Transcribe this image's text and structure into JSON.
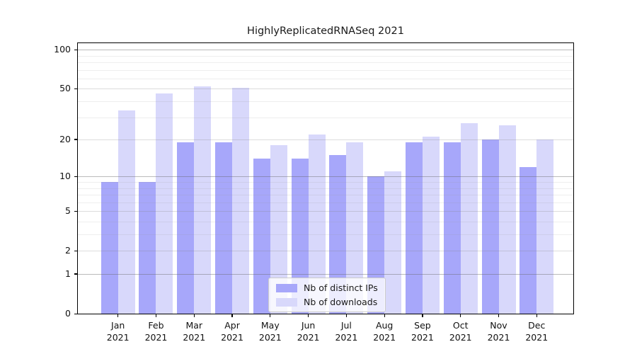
{
  "title": "HighlyReplicatedRNASeq 2021",
  "chart_data": {
    "type": "bar",
    "title": "HighlyReplicatedRNASeq 2021",
    "categories": [
      "Jan",
      "Feb",
      "Mar",
      "Apr",
      "May",
      "Jun",
      "Jul",
      "Aug",
      "Sep",
      "Oct",
      "Nov",
      "Dec"
    ],
    "category_year": "2021",
    "series": [
      {
        "name": "Nb of distinct IPs",
        "color": "#a7a7fa",
        "values": [
          9,
          9,
          19,
          19,
          14,
          14,
          15,
          10,
          19,
          19,
          20,
          12
        ]
      },
      {
        "name": "Nb of downloads",
        "color": "#d8d8fb",
        "values": [
          34,
          46,
          52,
          51,
          18,
          22,
          19,
          11,
          21,
          27,
          26,
          20
        ]
      }
    ],
    "xlabel": "",
    "ylabel": "",
    "yscale": "log1p",
    "ylim": [
      0,
      112
    ],
    "yticks": [
      0,
      1,
      2,
      5,
      10,
      20,
      50,
      100
    ],
    "yticks_decade": [
      1,
      10,
      100
    ],
    "yticks_minor": [
      3,
      4,
      6,
      7,
      8,
      9,
      30,
      40,
      60,
      70,
      80,
      90
    ],
    "grid": true,
    "legend_position": "lower center"
  },
  "legend": {
    "items": [
      {
        "label": "Nb of distinct IPs",
        "color": "#a7a7fa"
      },
      {
        "label": "Nb of downloads",
        "color": "#d8d8fb"
      }
    ]
  }
}
